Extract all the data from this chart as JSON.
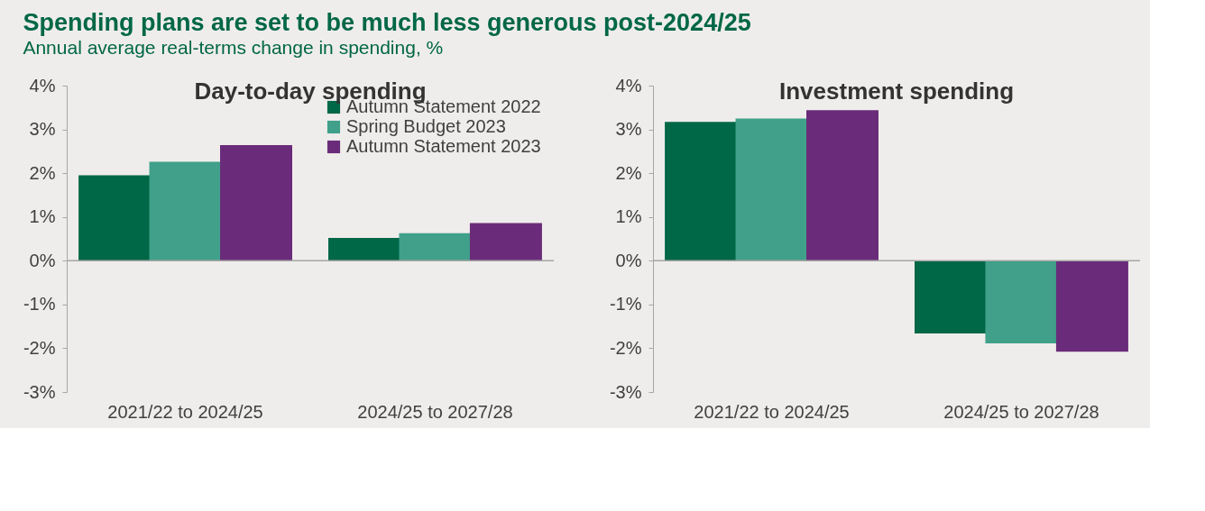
{
  "chart_data": [
    {
      "type": "bar",
      "title": "Day-to-day spending",
      "annotations": [
        "Spending plans are set to be much less generous post-2024/25",
        "Annual average real-terms change in spending, %"
      ],
      "categories": [
        "2021/22 to 2024/25",
        "2024/25 to 2027/28"
      ],
      "series": [
        {
          "name": "Autumn Statement 2022",
          "color": "#006747",
          "values": [
            1.95,
            0.52
          ]
        },
        {
          "name": "Spring Budget 2023",
          "color": "#40a08a",
          "values": [
            2.26,
            0.63
          ]
        },
        {
          "name": "Autumn Statement 2023",
          "color": "#6a2c7a",
          "values": [
            2.64,
            0.86
          ]
        }
      ],
      "ylim": [
        -3,
        4
      ],
      "yticks": [
        {
          "value": -3,
          "label": "-3%"
        },
        {
          "value": -2,
          "label": "-2%"
        },
        {
          "value": -1,
          "label": "-1%"
        },
        {
          "value": 0,
          "label": "0%"
        },
        {
          "value": 1,
          "label": "1%"
        },
        {
          "value": 2,
          "label": "2%"
        },
        {
          "value": 3,
          "label": "3%"
        },
        {
          "value": 4,
          "label": "4%"
        }
      ],
      "ref_lines": [
        {
          "axis": "y",
          "value": 0,
          "color": "#a6a6a6"
        }
      ],
      "grid": false,
      "legend": "top right"
    },
    {
      "type": "bar",
      "title": "Investment spending",
      "categories": [
        "2021/22 to 2024/25",
        "2024/25 to 2027/28"
      ],
      "series": [
        {
          "color": "#006747",
          "values": [
            3.17,
            -1.66
          ]
        },
        {
          "color": "#40a08a",
          "values": [
            3.25,
            -1.89
          ]
        },
        {
          "color": "#6a2c7a",
          "values": [
            3.44,
            -2.08
          ]
        }
      ],
      "ylim": [
        -3,
        4
      ],
      "yticks": [
        {
          "value": -3,
          "label": "-3%"
        },
        {
          "value": -2,
          "label": "-2%"
        },
        {
          "value": -1,
          "label": "-1%"
        },
        {
          "value": 0,
          "label": "0%"
        },
        {
          "value": 1,
          "label": "1%"
        },
        {
          "value": 2,
          "label": "2%"
        },
        {
          "value": 3,
          "label": "3%"
        },
        {
          "value": 4,
          "label": "4%"
        }
      ],
      "ref_lines": [
        {
          "axis": "y",
          "value": 0,
          "color": "#a6a6a6"
        }
      ],
      "grid": false,
      "legend": false
    }
  ]
}
